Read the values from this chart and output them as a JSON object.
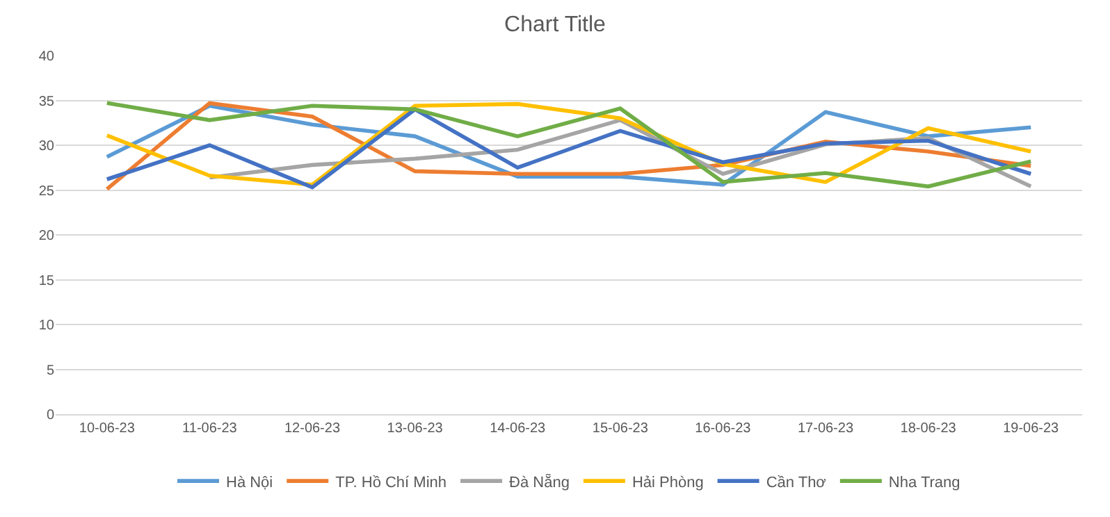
{
  "chart_data": {
    "type": "line",
    "title": "Chart Title",
    "categories": [
      "10-06-23",
      "11-06-23",
      "12-06-23",
      "13-06-23",
      "14-06-23",
      "15-06-23",
      "16-06-23",
      "17-06-23",
      "18-06-23",
      "19-06-23"
    ],
    "series": [
      {
        "name": "Hà Nội",
        "color": "#5b9bd5",
        "values": [
          28.7,
          34.4,
          32.3,
          31.0,
          26.5,
          26.5,
          25.6,
          33.7,
          31.0,
          32.0
        ]
      },
      {
        "name": "TP. Hồ Chí Minh",
        "color": "#ed7d31",
        "values": [
          25.1,
          34.7,
          33.2,
          27.1,
          26.8,
          26.8,
          27.8,
          30.4,
          29.3,
          27.7
        ]
      },
      {
        "name": "Đà Nẵng",
        "color": "#a5a5a5",
        "values": [
          null,
          26.4,
          27.8,
          28.5,
          29.5,
          32.8,
          26.8,
          30.1,
          30.8,
          25.4
        ]
      },
      {
        "name": "Hải Phòng",
        "color": "#ffc000",
        "values": [
          31.1,
          26.6,
          25.6,
          34.4,
          34.6,
          33.0,
          27.9,
          25.9,
          31.9,
          29.3
        ]
      },
      {
        "name": "Cần Thơ",
        "color": "#4472c4",
        "values": [
          26.2,
          30.0,
          25.3,
          34.0,
          27.5,
          31.6,
          28.1,
          30.2,
          30.5,
          26.8
        ]
      },
      {
        "name": "Nha Trang",
        "color": "#70ad47",
        "values": [
          34.7,
          32.8,
          34.4,
          34.0,
          31.0,
          34.1,
          25.9,
          26.9,
          25.4,
          28.2
        ]
      }
    ],
    "ylim": [
      0,
      40
    ],
    "yticks": [
      0,
      5,
      10,
      15,
      20,
      25,
      30,
      35,
      40
    ],
    "grid": "y",
    "legend": "bottom",
    "marker": "none",
    "line_style": "solid"
  }
}
